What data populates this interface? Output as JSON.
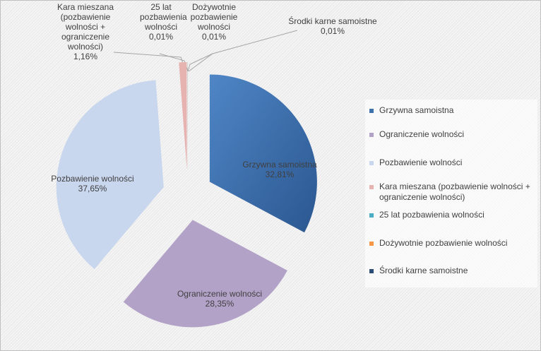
{
  "chart_data": {
    "type": "pie",
    "categories": [
      "Grzywna samoistna",
      "Ograniczenie wolności",
      "Pozbawienie wolności",
      "Kara mieszana (pozbawienie wolności + ograniczenie wolności)",
      "25 lat pozbawienia wolności",
      "Dożywotnie pozbawienie wolności",
      "Środki karne samoistne"
    ],
    "label_names": [
      "Grzywna samoistna",
      "Ograniczenie wolności",
      "Pozbawienie wolności",
      "Kara mieszana (pozbawienie wolności + ograniczenie wolności)",
      "25 lat pozbawienia wolności",
      "Dożywotnie pozbawienie wolności",
      "Środki karne samoistne"
    ],
    "values": [
      32.81,
      28.35,
      37.65,
      1.16,
      0.01,
      0.01,
      0.01
    ],
    "value_labels": [
      "32,81%",
      "28,35%",
      "37,65%",
      "1,16%",
      "0,01%",
      "0,01%",
      "0,01%"
    ],
    "colors": [
      "#3f71ab",
      "#b3a2c8",
      "#c8d6ee",
      "#e6b3b1",
      "#4bacc6",
      "#f79646",
      "#2c4d75"
    ],
    "legend": "right"
  }
}
